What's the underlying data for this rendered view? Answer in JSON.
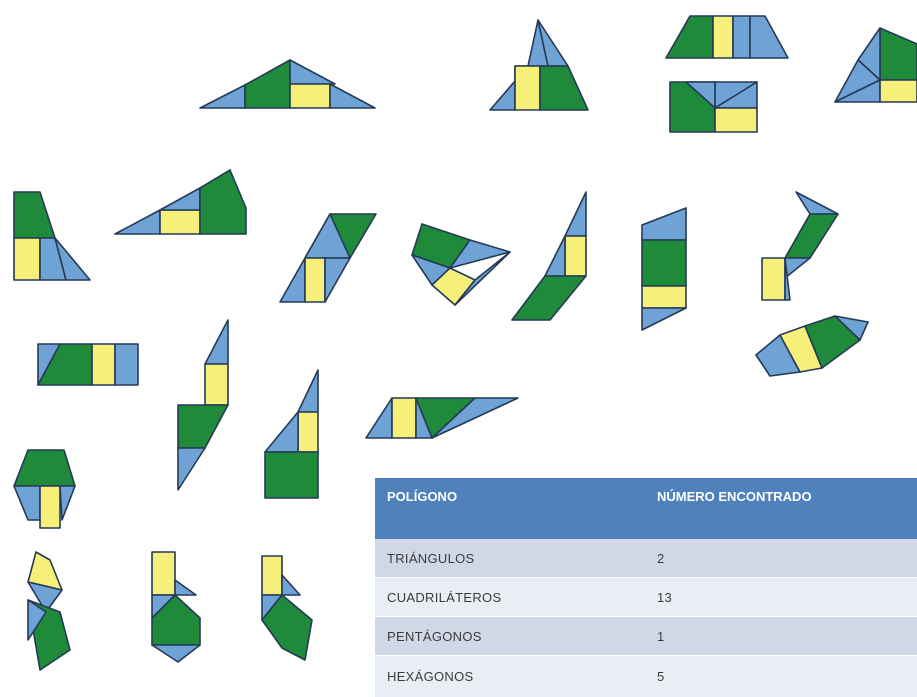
{
  "table": {
    "headers": [
      "POLÍGONO",
      "NÚMERO ENCONTRADO"
    ],
    "rows": [
      {
        "polygon": "TRIÁNGULOS",
        "count": "2"
      },
      {
        "polygon": "CUADRILÁTEROS",
        "count": "13"
      },
      {
        "polygon": "PENTÁGONOS",
        "count": "1"
      },
      {
        "polygon": "HEXÁGONOS",
        "count": "5"
      }
    ]
  },
  "colors": {
    "piece_green": "#1f8a3a",
    "piece_blue": "#6fa3d6",
    "piece_yellow": "#f6ef7a",
    "outline": "#243a57",
    "table_header": "#4f81bd"
  },
  "figures": {
    "count": 21,
    "composed_of": [
      "green triangles",
      "blue triangles",
      "yellow rectangles"
    ]
  }
}
